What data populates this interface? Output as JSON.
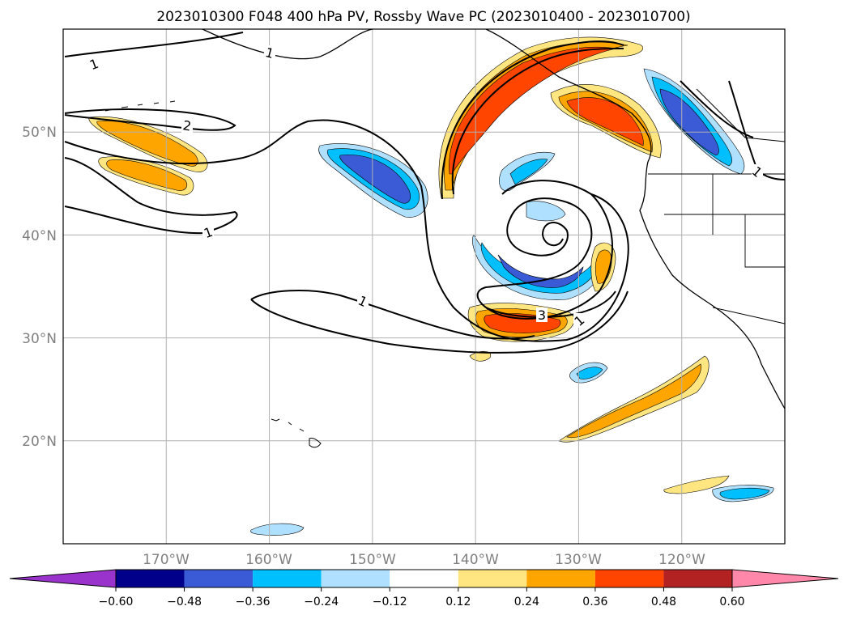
{
  "chart_data": {
    "type": "contour-map",
    "title": "2023010300 F048 400 hPa PV, Rossby Wave PC (2023010400 - 2023010700)",
    "xaxis": {
      "range": [
        -180,
        -110
      ],
      "ticks": [
        -170,
        -160,
        -150,
        -140,
        -130,
        -120
      ],
      "tick_labels": [
        "170°W",
        "160°W",
        "150°W",
        "140°W",
        "130°W",
        "120°W"
      ]
    },
    "yaxis": {
      "range": [
        10,
        60
      ],
      "ticks": [
        20,
        30,
        40,
        50
      ],
      "tick_labels": [
        "20°N",
        "30°N",
        "40°N",
        "50°N"
      ]
    },
    "colorbar": {
      "levels": [
        -0.6,
        -0.48,
        -0.36,
        -0.24,
        -0.12,
        0.12,
        0.24,
        0.36,
        0.48,
        0.6
      ],
      "tick_labels": [
        "−0.60",
        "−0.48",
        "−0.36",
        "−0.24",
        "−0.12",
        "0.12",
        "0.24",
        "0.36",
        "0.48",
        "0.60"
      ],
      "colors": [
        "#9933cc",
        "#00008b",
        "#3b5bd6",
        "#00bfff",
        "#b0e0ff",
        "#ffffff",
        "#ffe680",
        "#ffa500",
        "#ff4500",
        "#b22222",
        "#ff88aa"
      ],
      "extend": "both"
    },
    "contour_labels": [
      "1",
      "1",
      "2",
      "1",
      "1",
      "3",
      "1",
      "1"
    ],
    "anomalies": [
      {
        "name": "alaska-arc-positive",
        "sign": 1,
        "peak": 0.48
      },
      {
        "name": "bc-coast-positive",
        "sign": 1,
        "peak": 0.48
      },
      {
        "name": "pacnw-negative",
        "sign": -1,
        "peak": 0.48
      },
      {
        "name": "central-pacific-negative",
        "sign": -1,
        "peak": 0.36
      },
      {
        "name": "western-positive",
        "sign": 1,
        "peak": 0.24
      },
      {
        "name": "swirl-negative",
        "sign": -1,
        "peak": 0.36
      },
      {
        "name": "swirl-positive",
        "sign": 1,
        "peak": 0.36
      },
      {
        "name": "subtropical-positive",
        "sign": 1,
        "peak": 0.24
      },
      {
        "name": "southeast-negative",
        "sign": -1,
        "peak": 0.24
      }
    ]
  }
}
